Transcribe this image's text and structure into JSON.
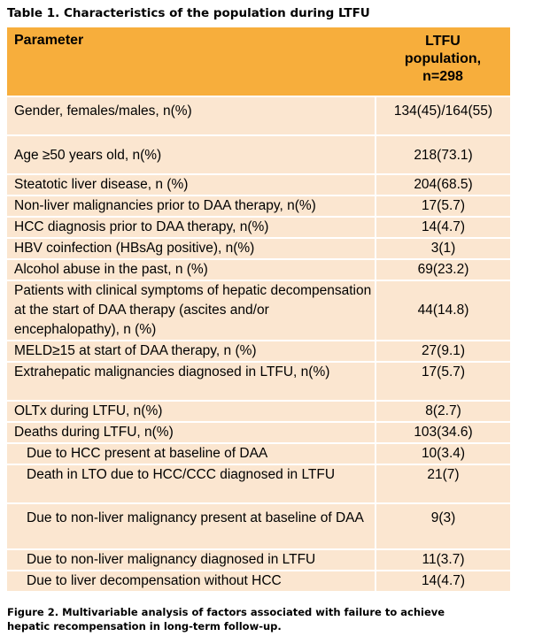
{
  "caption_top": "Table 1. Characteristics of the population during LTFU",
  "header": {
    "parameter": "Parameter",
    "value_lines": [
      "LTFU",
      "population,",
      "n=298"
    ]
  },
  "rows": [
    {
      "label": "Gender, females/males, n(%)",
      "value": "134(45)/164(55)"
    },
    {
      "label": "Age ≥50 years old, n(%)",
      "value": "218(73.1)"
    },
    {
      "label": "Steatotic liver disease, n (%)",
      "value": "204(68.5)"
    },
    {
      "label": "Non-liver malignancies prior to DAA therapy, n(%)",
      "value": "17(5.7)"
    },
    {
      "label": "HCC diagnosis prior to DAA therapy, n(%)",
      "value": "14(4.7)"
    },
    {
      "label": "HBV coinfection (HBsAg positive), n(%)",
      "value": "3(1)"
    },
    {
      "label": "Alcohol abuse in the past, n (%)",
      "value": "69(23.2)"
    },
    {
      "label": "Patients with clinical symptoms of hepatic decompensation at the start of DAA therapy (ascites and/or encephalopathy), n (%)",
      "value": "44(14.8)"
    },
    {
      "label": "MELD≥15 at start of DAA therapy, n (%)",
      "value": "27(9.1)"
    },
    {
      "label": "Extrahepatic malignancies diagnosed in LTFU, n(%)",
      "value": "17(5.7)"
    },
    {
      "label": "OLTx during LTFU, n(%)",
      "value": "8(2.7)"
    },
    {
      "label": "Deaths during LTFU, n(%)",
      "value": "103(34.6)"
    },
    {
      "label": "Due to HCC present at baseline of DAA",
      "value": "10(3.4)"
    },
    {
      "label": "Death in LTO due to HCC/CCC diagnosed in LTFU",
      "value": "21(7)"
    },
    {
      "label": "Due to non-liver malignancy present at baseline of DAA",
      "value": "9(3)"
    },
    {
      "label": "Due to non-liver malignancy diagnosed in LTFU",
      "value": "11(3.7)"
    },
    {
      "label": "Due to liver decompensation without HCC",
      "value": "14(4.7)"
    }
  ],
  "caption_bottom": "Figure 2. Multivariable analysis of factors associated with failure to achieve hepatic recompensation in long-term follow-up."
}
